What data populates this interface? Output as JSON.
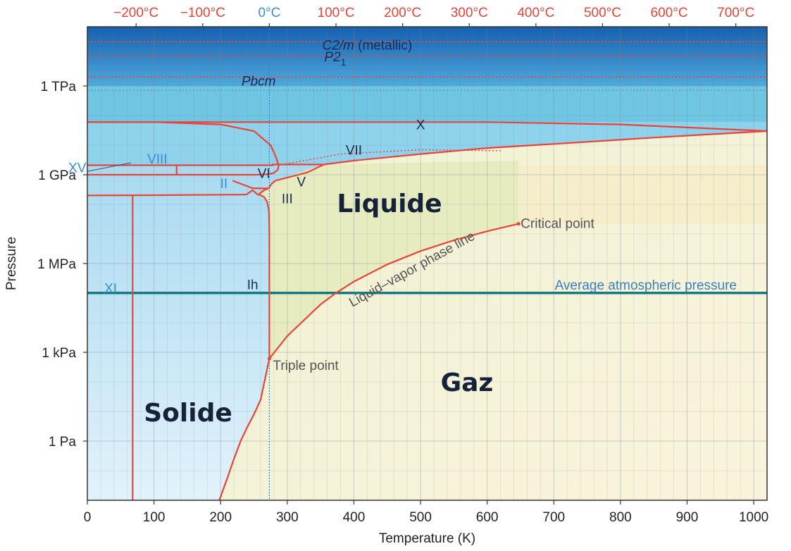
{
  "chart_data": {
    "type": "line",
    "xlabel": "Temperature (K)",
    "ylabel": "Pressure",
    "x_axis": {
      "range_K": [
        0,
        1020
      ],
      "ticks": [
        0,
        100,
        200,
        300,
        400,
        500,
        600,
        700,
        800,
        900,
        1000
      ],
      "tick_labels": [
        "0",
        "100",
        "200",
        "300",
        "400",
        "500",
        "600",
        "700",
        "800",
        "900",
        "1000"
      ]
    },
    "top_axis": {
      "ticks_K": [
        73.15,
        173.15,
        273.15,
        373.15,
        473.15,
        573.15,
        673.15,
        773.15,
        873.15,
        973.15
      ],
      "tick_labels": [
        "−200°C",
        "−100°C",
        "0°C",
        "100°C",
        "200°C",
        "300°C",
        "400°C",
        "500°C",
        "600°C",
        "700°C"
      ],
      "color": "#e8443a",
      "zero_color": "#3a8fd0"
    },
    "y_axis": {
      "scale": "log",
      "range_Pa": [
        0.01,
        100000000000000
      ],
      "ticks_Pa": [
        1,
        1000,
        1000000,
        1000000000,
        1000000000000
      ],
      "tick_labels": [
        "1 Pa",
        "1 kPa",
        "1 MPa",
        "1 GPa",
        "1 TPa"
      ]
    },
    "grid": true,
    "legend": "none",
    "regions": [
      {
        "label": "Solide"
      },
      {
        "label": "Liquide"
      },
      {
        "label": "Gaz"
      }
    ],
    "ice_phases": [
      {
        "label": "Ih",
        "style": "dark",
        "T": 248,
        "P": 200000
      },
      {
        "label": "II",
        "style": "light",
        "T": 205,
        "P": 520000000
      },
      {
        "label": "III",
        "style": "dark",
        "T": 300,
        "P": 160000000
      },
      {
        "label": "V",
        "style": "dark",
        "T": 321,
        "P": 600000000
      },
      {
        "label": "VI",
        "style": "dark",
        "T": 265,
        "P": 1150000000
      },
      {
        "label": "VII",
        "style": "dark",
        "T": 400,
        "P": 7000000000
      },
      {
        "label": "VIII",
        "style": "light",
        "T": 105,
        "P": 3500000000
      },
      {
        "label": "X",
        "style": "dark",
        "T": 500,
        "P": 50000000000
      },
      {
        "label": "XI",
        "style": "light",
        "T": 35,
        "P": 150000
      },
      {
        "label": "XV",
        "style": "light",
        "T": -15,
        "P": 1800000000
      }
    ],
    "structures": [
      {
        "text": "C2/m",
        "suffix": " (metallic)",
        "T": 420,
        "P": 25000000000000
      },
      {
        "text": "P2",
        "sub": "1",
        "T": 372,
        "P": 10000000000000
      },
      {
        "text": "Pbcm",
        "T": 257,
        "P": 1500000000000
      }
    ],
    "series": [
      {
        "name": "Liquid–vapor phase line",
        "points": [
          [
            273.16,
            611.657
          ],
          [
            300,
            3536
          ],
          [
            350,
            41680
          ],
          [
            373.15,
            101325
          ],
          [
            400,
            245600
          ],
          [
            450,
            932000
          ],
          [
            500,
            2639000
          ],
          [
            550,
            6117000
          ],
          [
            600,
            12340000
          ],
          [
            647.1,
            22064000
          ]
        ]
      },
      {
        "name": "sublimation",
        "points": [
          [
            198,
            0.01
          ],
          [
            210,
            0.056
          ],
          [
            220,
            0.25
          ],
          [
            230,
            1.0
          ],
          [
            240,
            3.0
          ],
          [
            250,
            8.0
          ],
          [
            260,
            25.0
          ],
          [
            273.16,
            611.657
          ]
        ]
      }
    ],
    "boundaries": [
      {
        "points": [
          [
            273.16,
            611.657
          ],
          [
            273.16,
            10000000
          ],
          [
            272.5,
            60000000
          ],
          [
            270,
            120000000
          ],
          [
            265,
            180000000
          ],
          [
            259,
            210000000
          ],
          [
            256.2,
            209900000
          ]
        ]
      },
      {
        "points": [
          [
            256.2,
            209900000
          ],
          [
            265,
            300000000
          ],
          [
            272,
            344000000
          ]
        ]
      },
      {
        "points": [
          [
            256.2,
            209900000
          ],
          [
            248,
            300000000
          ],
          [
            238.45,
            212900000
          ]
        ]
      },
      {
        "points": [
          [
            272,
            344000000
          ],
          [
            276,
            480000000
          ],
          [
            282,
            632000000
          ]
        ]
      },
      {
        "points": [
          [
            282,
            632000000
          ],
          [
            300,
            800000000
          ],
          [
            330,
            1200000000
          ],
          [
            355,
            2216000000
          ]
        ]
      },
      {
        "points": [
          [
            355,
            2216000000
          ],
          [
            400,
            3000000000
          ],
          [
            500,
            5000000000
          ],
          [
            600,
            8000000000
          ],
          [
            700,
            11000000000
          ],
          [
            850,
            18000000000
          ],
          [
            1020,
            30000000000
          ]
        ]
      },
      {
        "points": [
          [
            0,
            2100000000
          ],
          [
            278,
            2100000000
          ],
          [
            278,
            2216000000
          ],
          [
            355,
            2216000000
          ]
        ]
      },
      {
        "points": [
          [
            0,
            1000000000
          ],
          [
            255,
            1000000000
          ],
          [
            272,
            1050000000
          ],
          [
            280,
            1150000000
          ],
          [
            286,
            1500000000
          ],
          [
            287,
            2100000000
          ]
        ]
      },
      {
        "points": [
          [
            134,
            1000000000
          ],
          [
            134,
            2100000000
          ]
        ]
      },
      {
        "points": [
          [
            218,
            630000000
          ],
          [
            248,
            350000000
          ],
          [
            272,
            344000000
          ]
        ]
      },
      {
        "points": [
          [
            0,
            200000000
          ],
          [
            100,
            204000000
          ],
          [
            238.45,
            212900000
          ]
        ]
      },
      {
        "points": [
          [
            0,
            60000000000
          ],
          [
            600,
            60000000000
          ],
          [
            800,
            50000000000
          ],
          [
            1020,
            30000000000
          ]
        ]
      },
      {
        "points": [
          [
            287,
            2100000000
          ],
          [
            283,
            4000000000
          ],
          [
            275,
            10000000000
          ],
          [
            250,
            30000000000
          ],
          [
            200,
            50000000000
          ],
          [
            100,
            60000000000
          ],
          [
            0,
            60000000000
          ]
        ]
      },
      {
        "points": [
          [
            68,
            0.01
          ],
          [
            68,
            200000000
          ]
        ]
      }
    ],
    "annotations": [
      {
        "text": "Triple point",
        "T": 273.16,
        "P": 611.657
      },
      {
        "text": "Critical point",
        "T": 647.1,
        "P": 22064000
      },
      {
        "text": "Liquid–vapor phase line"
      },
      {
        "text": "Average atmospheric pressure",
        "P": 101325
      }
    ],
    "reference_lines": [
      {
        "type": "horizontal",
        "P": 101325,
        "color": "#167880"
      },
      {
        "type": "vertical",
        "T": 273.15,
        "color": "#3a7fc0",
        "style": "dotted"
      }
    ],
    "colors": {
      "boundary": "#e8443a",
      "solid": "#cde8f6",
      "liquid": "#e6ecbf",
      "gas": "#f6f2d6",
      "high_pressure": "#6ec6e2",
      "top_band": "#1b73c0"
    }
  }
}
